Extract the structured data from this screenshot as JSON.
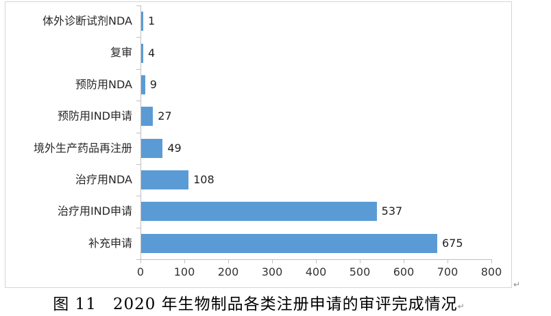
{
  "figure": {
    "caption": "图 11　2020 年生物制品各类注册申请的审评完成情况",
    "paragraph_mark": "↵"
  },
  "chart_data": {
    "type": "bar",
    "orientation": "horizontal",
    "categories_order": "top-to-bottom",
    "categories": [
      "体外诊断试剂NDA",
      "复审",
      "预防用NDA",
      "预防用IND申请",
      "境外生产药品再注册",
      "治疗用NDA",
      "治疗用IND申请",
      "补充申请"
    ],
    "values": [
      1,
      4,
      9,
      27,
      49,
      108,
      537,
      675
    ],
    "title": "",
    "xlabel": "",
    "ylabel": "",
    "xlim": [
      0,
      800
    ],
    "x_ticks": [
      0,
      100,
      200,
      300,
      400,
      500,
      600,
      700,
      800
    ],
    "data_labels": [
      1,
      4,
      9,
      27,
      49,
      108,
      537,
      675
    ],
    "grid": false,
    "legend": false,
    "bar_color": "#5B9BD5",
    "axis_color": "#bfbfbf",
    "label_color": "#262626"
  }
}
